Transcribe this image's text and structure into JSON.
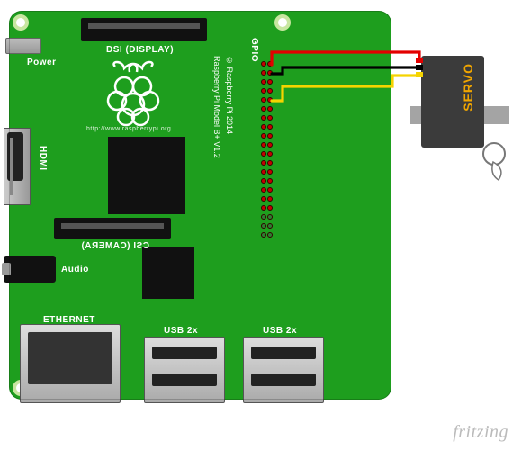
{
  "board": {
    "bg_color": "#1e9e1e",
    "labels": {
      "power": "Power",
      "hdmi": "HDMI",
      "audio": "Audio",
      "ethernet": "ETHERNET",
      "usb2x_a": "USB 2x",
      "usb2x_b": "USB 2x",
      "dsi": "DSI (DISPLAY)",
      "csi": "CSI (CAMERA)",
      "gpio": "GPIO",
      "model": "Raspberry Pi Model B+ V1.2",
      "copyright": "© Raspberry Pi 2014",
      "url": "http://www.raspberrypi.org"
    },
    "gpio_rows": 20,
    "pin_colors": {
      "default": "#c40000",
      "last3": "#2e7d32"
    }
  },
  "servo": {
    "body_color": "#3b3b3b",
    "flange_color": "#a4a4a4",
    "label_color": "#f0a500",
    "label_text": "SERVO"
  },
  "wires": {
    "red_color": "#e30000",
    "black_color": "#000000",
    "yellow_color": "#f5d400"
  },
  "credit": "fritzing"
}
